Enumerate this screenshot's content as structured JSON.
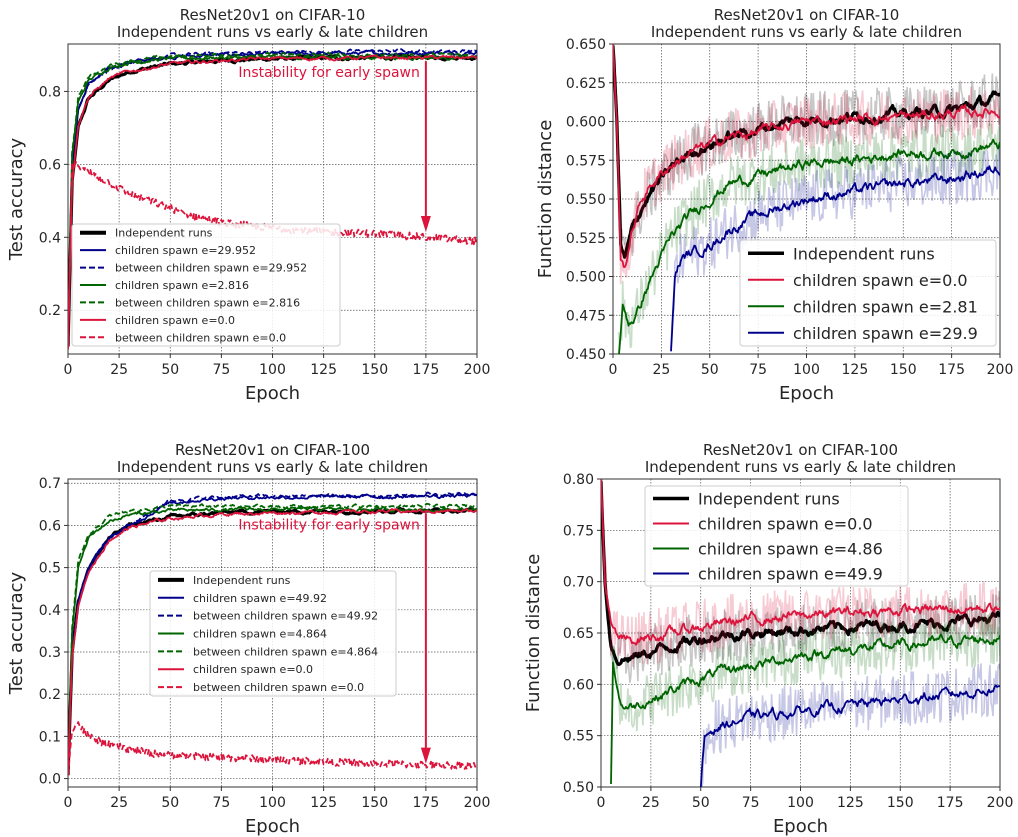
{
  "chart_data": [
    {
      "type": "line",
      "title": "ResNet20v1 on CIFAR-10",
      "subtitle": "Independent runs vs early & late children",
      "xlabel": "Epoch",
      "ylabel": "Test accuracy",
      "xlim": [
        0,
        200
      ],
      "ylim": [
        0.08,
        0.93
      ],
      "x_ticks": [
        "0",
        "25",
        "50",
        "75",
        "100",
        "125",
        "150",
        "175",
        "200"
      ],
      "y_ticks": [
        "0.2",
        "0.4",
        "0.6",
        "0.8"
      ],
      "y_tick_values": [
        0.2,
        0.4,
        0.6,
        0.8
      ],
      "grid": true,
      "legend_position": "lower-left",
      "annotation": {
        "text": "Instability for early spawn",
        "arrow_from": [
          175,
          0.85
        ],
        "arrow_to": [
          175,
          0.42
        ]
      },
      "series": [
        {
          "name": "Independent runs",
          "color": "#000000",
          "style": "solid",
          "width": "thick",
          "x": [
            0,
            2,
            5,
            10,
            20,
            30,
            50,
            75,
            100,
            150,
            200
          ],
          "y": [
            0.1,
            0.55,
            0.7,
            0.78,
            0.83,
            0.855,
            0.875,
            0.885,
            0.89,
            0.893,
            0.895
          ]
        },
        {
          "name": "children spawn e=29.952",
          "color": "#00008b",
          "style": "solid",
          "width": "normal",
          "x": [
            0,
            2,
            5,
            10,
            20,
            30,
            50,
            75,
            100,
            150,
            200
          ],
          "y": [
            0.1,
            0.6,
            0.75,
            0.82,
            0.86,
            0.88,
            0.895,
            0.9,
            0.902,
            0.905,
            0.907
          ]
        },
        {
          "name": "between children spawn e=29.952",
          "color": "#00008b",
          "style": "dashed",
          "width": "normal",
          "x": [
            0,
            2,
            5,
            10,
            20,
            30,
            50,
            75,
            100,
            150,
            200
          ],
          "y": [
            0.1,
            0.6,
            0.75,
            0.82,
            0.86,
            0.88,
            0.897,
            0.905,
            0.907,
            0.91,
            0.912
          ]
        },
        {
          "name": "children spawn e=2.816",
          "color": "#006400",
          "style": "solid",
          "width": "normal",
          "x": [
            0,
            2,
            5,
            10,
            20,
            30,
            50,
            75,
            100,
            150,
            200
          ],
          "y": [
            0.1,
            0.62,
            0.77,
            0.83,
            0.865,
            0.88,
            0.89,
            0.893,
            0.893,
            0.893,
            0.893
          ]
        },
        {
          "name": "between children spawn e=2.816",
          "color": "#006400",
          "style": "dashed",
          "width": "normal",
          "x": [
            0,
            2,
            5,
            10,
            20,
            30,
            50,
            75,
            100,
            150,
            200
          ],
          "y": [
            0.1,
            0.63,
            0.78,
            0.84,
            0.87,
            0.885,
            0.895,
            0.9,
            0.9,
            0.9,
            0.9
          ]
        },
        {
          "name": "children spawn e=0.0",
          "color": "#dc143c",
          "style": "solid",
          "width": "normal",
          "x": [
            0,
            2,
            5,
            10,
            20,
            30,
            50,
            75,
            100,
            150,
            200
          ],
          "y": [
            0.1,
            0.55,
            0.71,
            0.785,
            0.835,
            0.855,
            0.875,
            0.885,
            0.89,
            0.892,
            0.893
          ]
        },
        {
          "name": "between children spawn e=0.0",
          "color": "#dc143c",
          "style": "dashed",
          "width": "normal",
          "x": [
            0,
            2,
            5,
            10,
            20,
            30,
            40,
            50,
            60,
            75,
            100,
            125,
            150,
            175,
            200
          ],
          "y": [
            0.1,
            0.59,
            0.6,
            0.58,
            0.55,
            0.52,
            0.5,
            0.48,
            0.46,
            0.44,
            0.425,
            0.415,
            0.41,
            0.4,
            0.39
          ]
        }
      ]
    },
    {
      "type": "line",
      "title": "ResNet20v1 on CIFAR-10",
      "subtitle": "Independent runs vs early & late children",
      "xlabel": "Epoch",
      "ylabel": "Function distance",
      "xlim": [
        0,
        200
      ],
      "ylim": [
        0.45,
        0.65
      ],
      "x_ticks": [
        "0",
        "25",
        "50",
        "75",
        "100",
        "125",
        "150",
        "175",
        "200"
      ],
      "y_ticks": [
        "0.450",
        "0.475",
        "0.500",
        "0.525",
        "0.550",
        "0.575",
        "0.600",
        "0.625",
        "0.650"
      ],
      "y_tick_values": [
        0.45,
        0.475,
        0.5,
        0.525,
        0.55,
        0.575,
        0.6,
        0.625,
        0.65
      ],
      "grid": true,
      "legend_position": "lower-right",
      "series": [
        {
          "name": "Independent runs",
          "color": "#000000",
          "style": "solid",
          "width": "thick",
          "x": [
            0,
            2,
            4,
            6,
            10,
            15,
            20,
            30,
            40,
            50,
            60,
            75,
            90,
            100,
            125,
            150,
            175,
            200
          ],
          "y": [
            0.65,
            0.6,
            0.52,
            0.51,
            0.53,
            0.545,
            0.555,
            0.57,
            0.58,
            0.585,
            0.59,
            0.595,
            0.6,
            0.601,
            0.603,
            0.605,
            0.607,
            0.615
          ]
        },
        {
          "name": "children spawn e=0.0",
          "color": "#dc143c",
          "style": "solid",
          "width": "normal",
          "x": [
            0,
            2,
            4,
            6,
            10,
            15,
            20,
            30,
            40,
            50,
            60,
            75,
            90,
            100,
            125,
            150,
            175,
            200
          ],
          "y": [
            0.65,
            0.6,
            0.51,
            0.505,
            0.53,
            0.55,
            0.56,
            0.572,
            0.58,
            0.585,
            0.59,
            0.593,
            0.598,
            0.6,
            0.602,
            0.603,
            0.605,
            0.607
          ]
        },
        {
          "name": "children spawn e=2.81",
          "color": "#006400",
          "style": "solid",
          "width": "normal",
          "x": [
            3,
            5,
            8,
            12,
            20,
            30,
            40,
            50,
            60,
            75,
            100,
            125,
            150,
            175,
            200
          ],
          "y": [
            0.45,
            0.48,
            0.47,
            0.475,
            0.5,
            0.525,
            0.54,
            0.55,
            0.56,
            0.565,
            0.573,
            0.575,
            0.58,
            0.58,
            0.585
          ]
        },
        {
          "name": "children spawn e=29.9",
          "color": "#00008b",
          "style": "solid",
          "width": "normal",
          "x": [
            30,
            32,
            35,
            40,
            50,
            60,
            75,
            100,
            125,
            150,
            175,
            200
          ],
          "y": [
            0.45,
            0.5,
            0.51,
            0.515,
            0.52,
            0.53,
            0.54,
            0.55,
            0.555,
            0.56,
            0.563,
            0.57
          ]
        }
      ]
    },
    {
      "type": "line",
      "title": "ResNet20v1 on CIFAR-100",
      "subtitle": "Independent runs vs early & late children",
      "xlabel": "Epoch",
      "ylabel": "Test accuracy",
      "xlim": [
        0,
        200
      ],
      "ylim": [
        -0.02,
        0.71
      ],
      "x_ticks": [
        "0",
        "25",
        "50",
        "75",
        "100",
        "125",
        "150",
        "175",
        "200"
      ],
      "y_ticks": [
        "0.0",
        "0.1",
        "0.2",
        "0.3",
        "0.4",
        "0.5",
        "0.6",
        "0.7"
      ],
      "y_tick_values": [
        0.0,
        0.1,
        0.2,
        0.3,
        0.4,
        0.5,
        0.6,
        0.7
      ],
      "grid": true,
      "legend_position": "center",
      "annotation": {
        "text": "Instability for early spawn",
        "arrow_from": [
          175,
          0.6
        ],
        "arrow_to": [
          175,
          0.04
        ]
      },
      "series": [
        {
          "name": "Independent runs",
          "color": "#000000",
          "style": "solid",
          "width": "thick",
          "x": [
            0,
            2,
            5,
            10,
            20,
            30,
            50,
            75,
            100,
            150,
            200
          ],
          "y": [
            0.01,
            0.3,
            0.42,
            0.5,
            0.57,
            0.6,
            0.62,
            0.63,
            0.633,
            0.635,
            0.636
          ]
        },
        {
          "name": "children spawn e=49.92",
          "color": "#00008b",
          "style": "solid",
          "width": "normal",
          "x": [
            0,
            2,
            5,
            10,
            20,
            30,
            50,
            75,
            100,
            150,
            200
          ],
          "y": [
            0.01,
            0.3,
            0.42,
            0.5,
            0.57,
            0.6,
            0.655,
            0.665,
            0.667,
            0.668,
            0.67
          ]
        },
        {
          "name": "between children spawn e=49.92",
          "color": "#00008b",
          "style": "dashed",
          "width": "normal",
          "x": [
            0,
            2,
            5,
            10,
            20,
            30,
            50,
            75,
            100,
            150,
            200
          ],
          "y": [
            0.01,
            0.3,
            0.42,
            0.5,
            0.57,
            0.6,
            0.66,
            0.667,
            0.669,
            0.67,
            0.672
          ]
        },
        {
          "name": "children spawn e=4.864",
          "color": "#006400",
          "style": "solid",
          "width": "normal",
          "x": [
            0,
            2,
            5,
            10,
            20,
            30,
            50,
            75,
            100,
            150,
            200
          ],
          "y": [
            0.01,
            0.35,
            0.5,
            0.57,
            0.61,
            0.625,
            0.635,
            0.637,
            0.638,
            0.638,
            0.638
          ]
        },
        {
          "name": "between children spawn e=4.864",
          "color": "#006400",
          "style": "dashed",
          "width": "normal",
          "x": [
            0,
            2,
            5,
            10,
            20,
            30,
            50,
            75,
            100,
            150,
            200
          ],
          "y": [
            0.01,
            0.36,
            0.51,
            0.58,
            0.62,
            0.635,
            0.645,
            0.645,
            0.645,
            0.645,
            0.645
          ]
        },
        {
          "name": "children spawn e=0.0",
          "color": "#dc143c",
          "style": "solid",
          "width": "normal",
          "x": [
            0,
            2,
            5,
            10,
            20,
            30,
            50,
            75,
            100,
            150,
            200
          ],
          "y": [
            0.01,
            0.29,
            0.41,
            0.49,
            0.565,
            0.595,
            0.617,
            0.627,
            0.63,
            0.633,
            0.634
          ]
        },
        {
          "name": "between children spawn e=0.0",
          "color": "#dc143c",
          "style": "dashed",
          "width": "normal",
          "x": [
            0,
            2,
            5,
            10,
            20,
            30,
            40,
            50,
            75,
            100,
            125,
            150,
            175,
            200
          ],
          "y": [
            0.01,
            0.12,
            0.13,
            0.1,
            0.08,
            0.07,
            0.06,
            0.055,
            0.05,
            0.045,
            0.04,
            0.035,
            0.033,
            0.03
          ]
        }
      ]
    },
    {
      "type": "line",
      "title": "ResNet20v1 on CIFAR-100",
      "subtitle": "Independent runs vs early & late children",
      "xlabel": "Epoch",
      "ylabel": "Function distance",
      "xlim": [
        0,
        200
      ],
      "ylim": [
        0.5,
        0.8
      ],
      "x_ticks": [
        "0",
        "25",
        "50",
        "75",
        "100",
        "125",
        "150",
        "175",
        "200"
      ],
      "y_ticks": [
        "0.50",
        "0.55",
        "0.60",
        "0.65",
        "0.70",
        "0.75",
        "0.80"
      ],
      "y_tick_values": [
        0.5,
        0.55,
        0.6,
        0.65,
        0.7,
        0.75,
        0.8
      ],
      "grid": true,
      "legend_position": "top-center",
      "series": [
        {
          "name": "Independent runs",
          "color": "#000000",
          "style": "solid",
          "width": "thick",
          "x": [
            0,
            2,
            5,
            8,
            12,
            20,
            30,
            40,
            50,
            60,
            75,
            100,
            125,
            150,
            175,
            200
          ],
          "y": [
            0.8,
            0.7,
            0.64,
            0.625,
            0.625,
            0.628,
            0.635,
            0.64,
            0.645,
            0.648,
            0.65,
            0.653,
            0.656,
            0.658,
            0.66,
            0.665
          ]
        },
        {
          "name": "children spawn e=0.0",
          "color": "#dc143c",
          "style": "solid",
          "width": "normal",
          "x": [
            0,
            2,
            5,
            8,
            12,
            20,
            30,
            40,
            50,
            60,
            75,
            100,
            125,
            150,
            175,
            200
          ],
          "y": [
            0.8,
            0.7,
            0.655,
            0.645,
            0.642,
            0.645,
            0.648,
            0.652,
            0.656,
            0.66,
            0.663,
            0.667,
            0.67,
            0.672,
            0.673,
            0.675
          ]
        },
        {
          "name": "children spawn e=4.86",
          "color": "#006400",
          "style": "solid",
          "width": "normal",
          "x": [
            5,
            6,
            8,
            10,
            15,
            20,
            30,
            40,
            50,
            60,
            75,
            100,
            125,
            150,
            175,
            200
          ],
          "y": [
            0.5,
            0.62,
            0.6,
            0.58,
            0.578,
            0.582,
            0.59,
            0.598,
            0.605,
            0.612,
            0.618,
            0.628,
            0.634,
            0.638,
            0.642,
            0.645
          ]
        },
        {
          "name": "children spawn e=49.9",
          "color": "#00008b",
          "style": "solid",
          "width": "normal",
          "x": [
            50,
            52,
            55,
            60,
            75,
            100,
            125,
            150,
            175,
            200
          ],
          "y": [
            0.5,
            0.548,
            0.555,
            0.56,
            0.568,
            0.574,
            0.58,
            0.585,
            0.59,
            0.597
          ]
        }
      ]
    }
  ]
}
